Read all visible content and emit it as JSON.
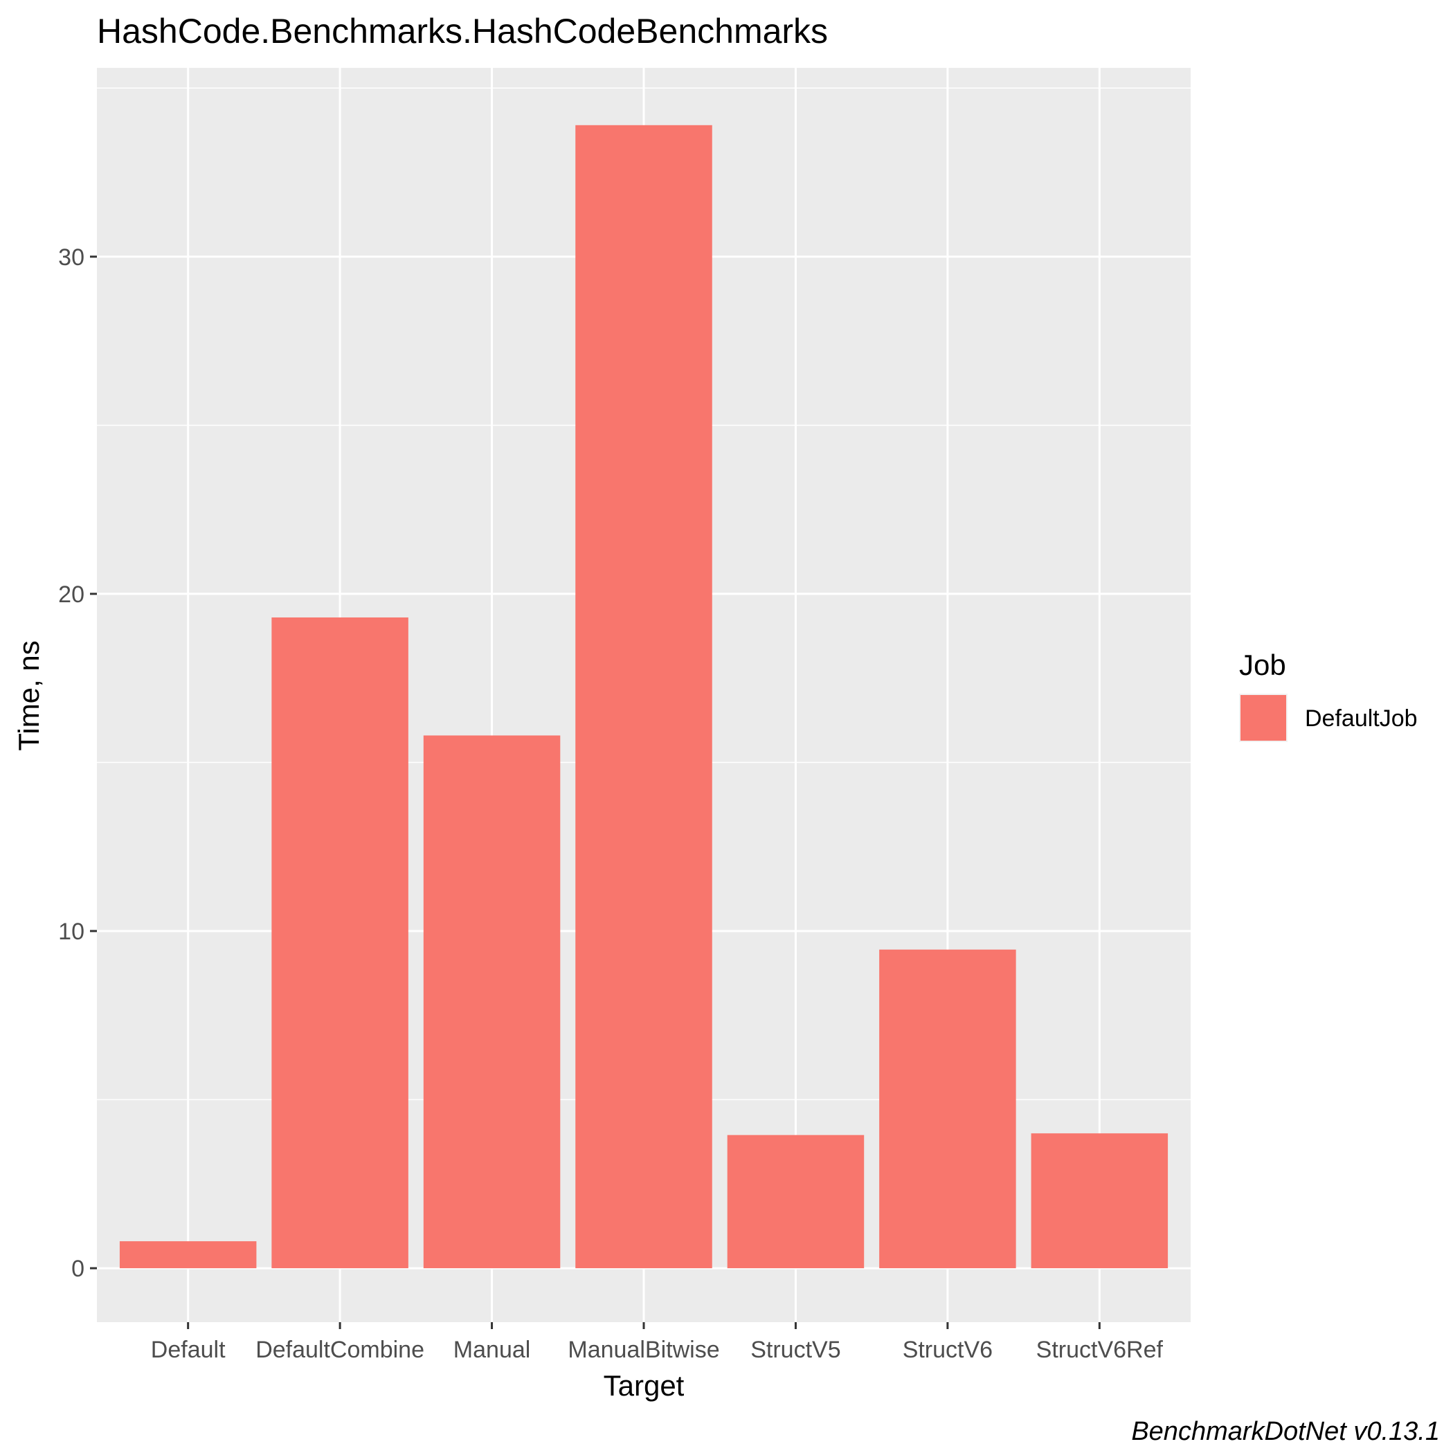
{
  "chart_data": {
    "type": "bar",
    "title": "HashCode.Benchmarks.HashCodeBenchmarks",
    "xlabel": "Target",
    "ylabel": "Time, ns",
    "categories": [
      "Default",
      "DefaultCombine",
      "Manual",
      "ManualBitwise",
      "StructV5",
      "StructV6",
      "StructV6Ref"
    ],
    "series": [
      {
        "name": "DefaultJob",
        "values": [
          0.8,
          19.3,
          15.8,
          33.9,
          3.95,
          9.45,
          4.0
        ]
      }
    ],
    "ylim": [
      -1.6,
      35.6
    ],
    "yticks": [
      0,
      10,
      20,
      30
    ],
    "ytick_labels": [
      "0",
      "10",
      "20",
      "30"
    ],
    "grid": true,
    "legend": {
      "title": "Job",
      "placement": "right"
    },
    "caption": "BenchmarkDotNet v0.13.1",
    "colors": {
      "bar": "#f8766d",
      "panel_background": "#ebebeb",
      "grid": "#ffffff",
      "tick": "#333333"
    }
  }
}
